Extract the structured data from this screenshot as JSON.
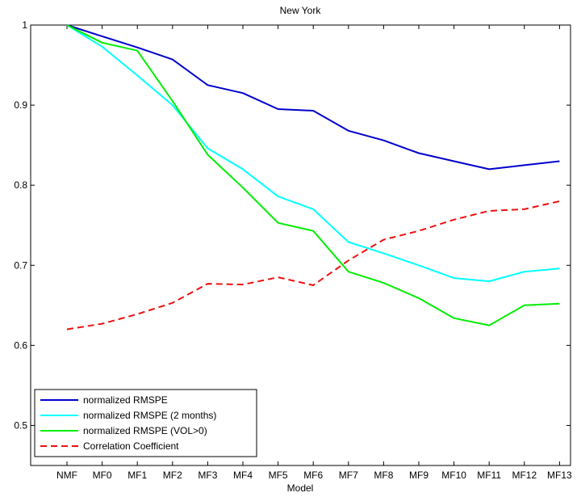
{
  "chart_data": {
    "type": "line",
    "title": "New York",
    "xlabel": "Model",
    "ylabel": "",
    "categories": [
      "NMF",
      "MF0",
      "MF1",
      "MF2",
      "MF3",
      "MF4",
      "MF5",
      "MF6",
      "MF7",
      "MF8",
      "MF9",
      "MF10",
      "MF11",
      "MF12",
      "MF13"
    ],
    "ylim": [
      0.45,
      1.0
    ],
    "yticks": [
      "0.5",
      "0.6",
      "0.7",
      "0.8",
      "0.9",
      "1"
    ],
    "grid": false,
    "legend_position": "bottom-left",
    "series": [
      {
        "name": "normalized RMSPE",
        "color": "#0000cc",
        "dash": "solid",
        "values": [
          1.0,
          0.986,
          0.972,
          0.957,
          0.925,
          0.915,
          0.895,
          0.893,
          0.868,
          0.856,
          0.84,
          0.83,
          0.82,
          0.825,
          0.83
        ]
      },
      {
        "name": "normalized RMSPE (2 months)",
        "color": "#00ffff",
        "dash": "solid",
        "values": [
          1.0,
          0.973,
          0.937,
          0.9,
          0.846,
          0.82,
          0.786,
          0.77,
          0.729,
          0.715,
          0.7,
          0.684,
          0.68,
          0.692,
          0.696
        ]
      },
      {
        "name": "normalized RMSPE (VOL>0)",
        "color": "#00ee00",
        "dash": "solid",
        "values": [
          1.0,
          0.978,
          0.968,
          0.905,
          0.838,
          0.797,
          0.753,
          0.743,
          0.692,
          0.678,
          0.659,
          0.634,
          0.625,
          0.65,
          0.652
        ]
      },
      {
        "name": "Correlation Coefficient",
        "color": "#ee1111",
        "dash": "dashed",
        "values": [
          0.62,
          0.627,
          0.639,
          0.653,
          0.677,
          0.676,
          0.685,
          0.675,
          0.706,
          0.732,
          0.743,
          0.757,
          0.768,
          0.77,
          0.78
        ]
      }
    ]
  }
}
